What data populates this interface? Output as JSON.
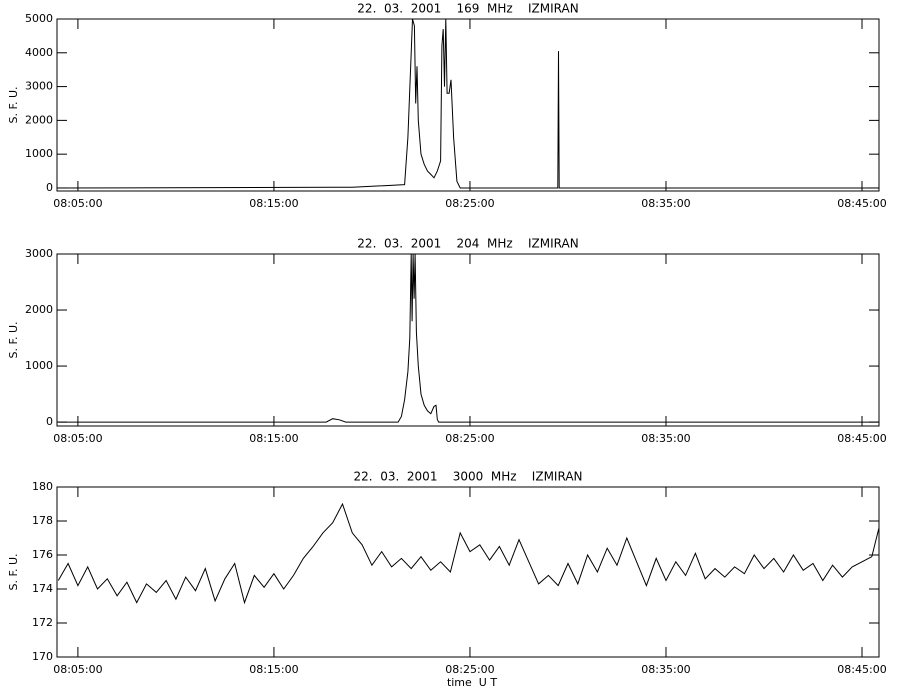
{
  "chart_data": [
    {
      "type": "line",
      "title": "22.  03.  2001    169  MHz    IZMIRAN",
      "ylabel": "S. F. U.",
      "color": "#000000",
      "x": [
        "08:04:00",
        "08:18:00",
        "08:19:00",
        "08:21:40",
        "08:21:50",
        "08:22:00",
        "08:22:04",
        "08:22:10",
        "08:22:14",
        "08:22:18",
        "08:22:22",
        "08:22:30",
        "08:22:40",
        "08:22:50",
        "08:23:00",
        "08:23:10",
        "08:23:20",
        "08:23:30",
        "08:23:34",
        "08:23:38",
        "08:23:42",
        "08:23:46",
        "08:23:50",
        "08:23:56",
        "08:24:02",
        "08:24:10",
        "08:24:20",
        "08:24:30",
        "08:29:29",
        "08:29:31",
        "08:29:33",
        "08:45:52"
      ],
      "values": [
        0,
        20,
        20,
        100,
        1500,
        4000,
        5000,
        4800,
        2500,
        3600,
        2000,
        1000,
        700,
        500,
        400,
        300,
        500,
        800,
        4200,
        4700,
        3000,
        5000,
        2800,
        2800,
        3200,
        1500,
        200,
        0,
        0,
        4050,
        0,
        0
      ],
      "xlim": [
        "08:03:56",
        "08:45:52"
      ],
      "xticks": [
        "08:05:00",
        "08:15:00",
        "08:25:00",
        "08:35:00",
        "08:45:00"
      ],
      "ylim": [
        -90,
        5000
      ],
      "yticks": [
        0,
        1000,
        2000,
        3000,
        4000,
        5000
      ]
    },
    {
      "type": "line",
      "title": "22.  03.  2001    204  MHz    IZMIRAN",
      "ylabel": "S. F. U.",
      "color": "#000000",
      "x": [
        "08:04:00",
        "08:17:40",
        "08:18:00",
        "08:18:20",
        "08:18:40",
        "08:21:20",
        "08:21:30",
        "08:21:40",
        "08:21:50",
        "08:21:56",
        "08:22:00",
        "08:22:03",
        "08:22:06",
        "08:22:09",
        "08:22:12",
        "08:22:16",
        "08:22:22",
        "08:22:30",
        "08:22:40",
        "08:22:50",
        "08:23:00",
        "08:23:10",
        "08:23:16",
        "08:23:20",
        "08:23:24",
        "08:45:52"
      ],
      "values": [
        0,
        0,
        60,
        40,
        0,
        0,
        100,
        400,
        900,
        1500,
        3000,
        1800,
        3000,
        2200,
        3000,
        1600,
        1000,
        500,
        300,
        200,
        150,
        280,
        300,
        50,
        0,
        0
      ],
      "xlim": [
        "08:03:56",
        "08:45:52"
      ],
      "xticks": [
        "08:05:00",
        "08:15:00",
        "08:25:00",
        "08:35:00",
        "08:45:00"
      ],
      "ylim": [
        -70,
        3000
      ],
      "yticks": [
        0,
        1000,
        2000,
        3000
      ]
    },
    {
      "type": "line",
      "title": "22.  03.  2001    3000  MHz    IZMIRAN",
      "ylabel": "S. F. U.",
      "xlabel": "time  U T",
      "color": "#000000",
      "x": [
        "08:04:00",
        "08:04:30",
        "08:05:00",
        "08:05:30",
        "08:06:00",
        "08:06:30",
        "08:07:00",
        "08:07:30",
        "08:08:00",
        "08:08:30",
        "08:09:00",
        "08:09:30",
        "08:10:00",
        "08:10:30",
        "08:11:00",
        "08:11:30",
        "08:12:00",
        "08:12:30",
        "08:13:00",
        "08:13:30",
        "08:14:00",
        "08:14:30",
        "08:15:00",
        "08:15:30",
        "08:16:00",
        "08:16:30",
        "08:17:00",
        "08:17:30",
        "08:18:00",
        "08:18:30",
        "08:19:00",
        "08:19:30",
        "08:20:00",
        "08:20:30",
        "08:21:00",
        "08:21:30",
        "08:22:00",
        "08:22:30",
        "08:23:00",
        "08:23:30",
        "08:24:00",
        "08:24:30",
        "08:25:00",
        "08:25:30",
        "08:26:00",
        "08:26:30",
        "08:27:00",
        "08:27:30",
        "08:28:00",
        "08:28:30",
        "08:29:00",
        "08:29:30",
        "08:30:00",
        "08:30:30",
        "08:31:00",
        "08:31:30",
        "08:32:00",
        "08:32:30",
        "08:33:00",
        "08:33:30",
        "08:34:00",
        "08:34:30",
        "08:35:00",
        "08:35:30",
        "08:36:00",
        "08:36:30",
        "08:37:00",
        "08:37:30",
        "08:38:00",
        "08:38:30",
        "08:39:00",
        "08:39:30",
        "08:40:00",
        "08:40:30",
        "08:41:00",
        "08:41:30",
        "08:42:00",
        "08:42:30",
        "08:43:00",
        "08:43:30",
        "08:44:00",
        "08:44:30",
        "08:45:00",
        "08:45:30",
        "08:45:52"
      ],
      "values": [
        174.5,
        175.5,
        174.2,
        175.3,
        174.0,
        174.6,
        173.6,
        174.4,
        173.2,
        174.3,
        173.8,
        174.5,
        173.4,
        174.7,
        173.9,
        175.2,
        173.3,
        174.6,
        175.5,
        173.2,
        174.8,
        174.1,
        174.9,
        174.0,
        174.8,
        175.8,
        176.5,
        177.3,
        177.9,
        179.0,
        177.3,
        176.6,
        175.4,
        176.2,
        175.3,
        175.8,
        175.2,
        175.9,
        175.1,
        175.6,
        175.0,
        177.3,
        176.2,
        176.6,
        175.7,
        176.5,
        175.4,
        176.9,
        175.6,
        174.3,
        174.8,
        174.2,
        175.5,
        174.3,
        176.0,
        175.0,
        176.4,
        175.4,
        177.0,
        175.6,
        174.2,
        175.8,
        174.5,
        175.6,
        174.8,
        176.1,
        174.6,
        175.2,
        174.7,
        175.3,
        174.9,
        176.0,
        175.2,
        175.8,
        175.0,
        176.0,
        175.1,
        175.5,
        174.5,
        175.4,
        174.7,
        175.3,
        175.6,
        175.9,
        177.6
      ],
      "xlim": [
        "08:03:56",
        "08:45:52"
      ],
      "xticks": [
        "08:05:00",
        "08:15:00",
        "08:25:00",
        "08:35:00",
        "08:45:00"
      ],
      "ylim": [
        170,
        180
      ],
      "yticks": [
        170,
        172,
        174,
        176,
        178,
        180
      ]
    }
  ]
}
